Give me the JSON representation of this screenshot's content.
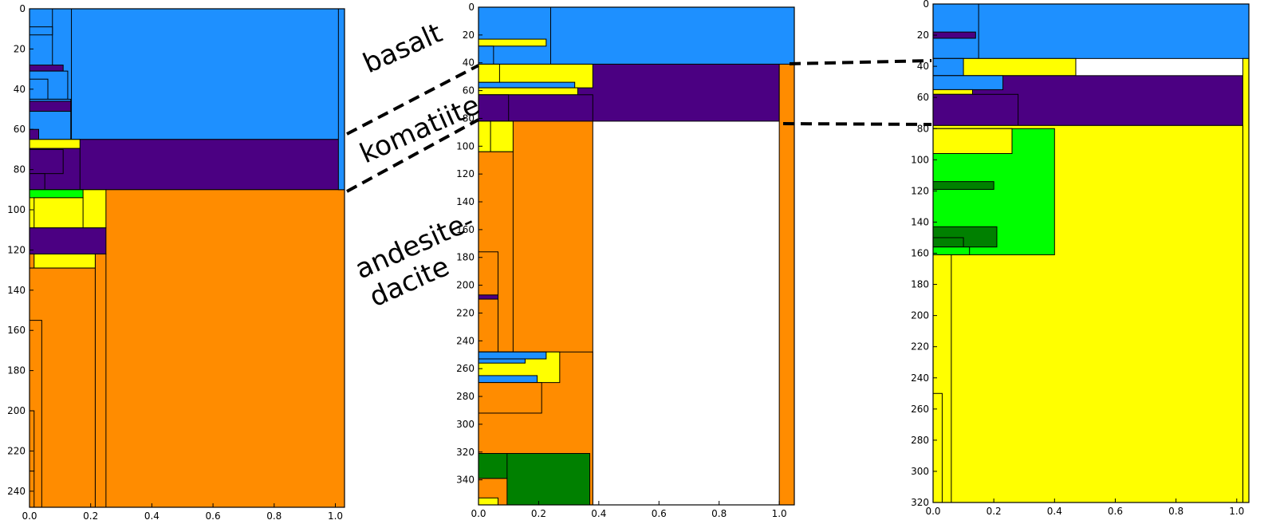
{
  "colors": {
    "basalt": "#1e90ff",
    "komatiite": "#4b0082",
    "andesite": "#ff8c00",
    "yellow": "#ffff00",
    "lime": "#00ff00",
    "green": "#008000",
    "edge": "#000000"
  },
  "annotations": {
    "basalt": "basalt",
    "komatiite": "komatiite",
    "andesite_line1": "andesite-",
    "andesite_line2": "dacite"
  },
  "chart_data": [
    {
      "type": "icicle",
      "xlim": [
        0,
        1.03
      ],
      "ylim": [
        0,
        248
      ],
      "xticks": [
        0.0,
        0.2,
        0.4,
        0.6,
        0.8,
        1.0
      ],
      "xtick_labels": [
        "0.0",
        "0.2",
        "0.4",
        "0.6",
        "0.8",
        "1.0"
      ],
      "yticks": [
        0,
        20,
        40,
        60,
        80,
        100,
        120,
        140,
        160,
        180,
        200,
        220,
        240
      ],
      "ytick_labels": [
        "0",
        "20",
        "40",
        "60",
        "80",
        "100",
        "120",
        "140",
        "160",
        "180",
        "200",
        "220",
        "240"
      ],
      "rects": [
        {
          "x0": 0.0,
          "x1": 1.03,
          "y0": 0,
          "y1": 65,
          "color": "basalt"
        },
        {
          "x0": 0.0,
          "x1": 1.03,
          "y0": 65,
          "y1": 90,
          "color": "komatiite"
        },
        {
          "x0": 0.0,
          "x1": 1.03,
          "y0": 90,
          "y1": 248,
          "color": "andesite"
        },
        {
          "x0": 1.01,
          "x1": 1.03,
          "y0": 0,
          "y1": 90,
          "color": "basalt"
        },
        {
          "x0": 0.0,
          "x1": 0.137,
          "y0": 0,
          "y1": 65,
          "color": "basalt"
        },
        {
          "x0": 0.0,
          "x1": 0.075,
          "y0": 0,
          "y1": 30,
          "color": "basalt"
        },
        {
          "x0": 0.0,
          "x1": 0.075,
          "y0": 9,
          "y1": 13,
          "color": "basalt"
        },
        {
          "x0": 0.0,
          "x1": 0.11,
          "y0": 28,
          "y1": 31,
          "color": "komatiite"
        },
        {
          "x0": 0.0,
          "x1": 0.125,
          "y0": 31,
          "y1": 45,
          "color": "basalt"
        },
        {
          "x0": 0.0,
          "x1": 0.06,
          "y0": 35,
          "y1": 45,
          "color": "basalt"
        },
        {
          "x0": 0.0,
          "x1": 0.135,
          "y0": 45,
          "y1": 51,
          "color": "basalt"
        },
        {
          "x0": 0.0,
          "x1": 0.135,
          "y0": 46,
          "y1": 51,
          "color": "komatiite"
        },
        {
          "x0": 0.0,
          "x1": 0.135,
          "y0": 51,
          "y1": 65,
          "color": "basalt"
        },
        {
          "x0": 0.0,
          "x1": 0.03,
          "y0": 60,
          "y1": 65,
          "color": "komatiite"
        },
        {
          "x0": 0.0,
          "x1": 0.165,
          "y0": 65,
          "y1": 69.5,
          "color": "yellow"
        },
        {
          "x0": 0.0,
          "x1": 0.165,
          "y0": 69.5,
          "y1": 90,
          "color": "komatiite"
        },
        {
          "x0": 0.0,
          "x1": 0.11,
          "y0": 70,
          "y1": 82,
          "color": "komatiite"
        },
        {
          "x0": 0.0,
          "x1": 0.05,
          "y0": 82,
          "y1": 90,
          "color": "komatiite"
        },
        {
          "x0": 0.0,
          "x1": 0.25,
          "y0": 90,
          "y1": 109,
          "color": "yellow"
        },
        {
          "x0": 0.0,
          "x1": 0.175,
          "y0": 90,
          "y1": 94,
          "color": "lime"
        },
        {
          "x0": 0.015,
          "x1": 0.175,
          "y0": 94,
          "y1": 109,
          "color": "yellow"
        },
        {
          "x0": 0.0,
          "x1": 0.25,
          "y0": 109,
          "y1": 122,
          "color": "komatiite"
        },
        {
          "x0": 0.0,
          "x1": 0.215,
          "y0": 122,
          "y1": 129,
          "color": "yellow"
        },
        {
          "x0": 0.0,
          "x1": 0.015,
          "y0": 122,
          "y1": 129,
          "color": "andesite"
        },
        {
          "x0": 0.0,
          "x1": 0.215,
          "y0": 129,
          "y1": 248,
          "color": "andesite"
        },
        {
          "x0": 0.215,
          "x1": 0.25,
          "y0": 122,
          "y1": 248,
          "color": "andesite"
        },
        {
          "x0": 0.0,
          "x1": 0.04,
          "y0": 155,
          "y1": 248,
          "color": "andesite"
        },
        {
          "x0": 0.0,
          "x1": 0.015,
          "y0": 200,
          "y1": 230,
          "color": "andesite"
        },
        {
          "x0": 0.0,
          "x1": 0.015,
          "y0": 230,
          "y1": 248,
          "color": "andesite"
        }
      ]
    },
    {
      "type": "icicle",
      "xlim": [
        0,
        1.05
      ],
      "ylim": [
        0,
        358
      ],
      "xticks": [
        0.0,
        0.2,
        0.4,
        0.6,
        0.8,
        1.0
      ],
      "xtick_labels": [
        "0.0",
        "0.2",
        "0.4",
        "0.6",
        "0.8",
        "1.0"
      ],
      "yticks": [
        0,
        20,
        40,
        60,
        80,
        100,
        120,
        140,
        160,
        180,
        200,
        220,
        240,
        260,
        280,
        300,
        320,
        340
      ],
      "ytick_labels": [
        "0",
        "20",
        "40",
        "60",
        "80",
        "100",
        "120",
        "140",
        "160",
        "180",
        "200",
        "220",
        "240",
        "260",
        "280",
        "300",
        "320",
        "340"
      ],
      "rects": [
        {
          "x0": 0.0,
          "x1": 1.05,
          "y0": 0,
          "y1": 41,
          "color": "basalt"
        },
        {
          "x0": 0.0,
          "x1": 0.24,
          "y0": 0,
          "y1": 41,
          "color": "basalt"
        },
        {
          "x0": 0.0,
          "x1": 0.225,
          "y0": 23,
          "y1": 28,
          "color": "yellow"
        },
        {
          "x0": 0.0,
          "x1": 0.05,
          "y0": 28,
          "y1": 41,
          "color": "basalt"
        },
        {
          "x0": 0.0,
          "x1": 1.0,
          "y0": 41,
          "y1": 82,
          "color": "komatiite"
        },
        {
          "x0": 1.0,
          "x1": 1.05,
          "y0": 41,
          "y1": 358,
          "color": "andesite"
        },
        {
          "x0": 0.0,
          "x1": 0.38,
          "y0": 41,
          "y1": 58,
          "color": "yellow"
        },
        {
          "x0": 0.0,
          "x1": 0.32,
          "y0": 54,
          "y1": 58,
          "color": "basalt"
        },
        {
          "x0": 0.0,
          "x1": 0.33,
          "y0": 58,
          "y1": 63,
          "color": "yellow"
        },
        {
          "x0": 0.0,
          "x1": 0.07,
          "y0": 41,
          "y1": 54,
          "color": "yellow"
        },
        {
          "x0": 0.0,
          "x1": 0.38,
          "y0": 63,
          "y1": 82,
          "color": "komatiite"
        },
        {
          "x0": 0.0,
          "x1": 0.1,
          "y0": 63,
          "y1": 82,
          "color": "komatiite"
        },
        {
          "x0": 0.0,
          "x1": 0.38,
          "y0": 82,
          "y1": 358,
          "color": "andesite"
        },
        {
          "x0": 0.0,
          "x1": 0.115,
          "y0": 82,
          "y1": 104,
          "color": "yellow"
        },
        {
          "x0": 0.0,
          "x1": 0.04,
          "y0": 82,
          "y1": 104,
          "color": "yellow"
        },
        {
          "x0": 0.0,
          "x1": 0.115,
          "y0": 104,
          "y1": 248,
          "color": "andesite"
        },
        {
          "x0": 0.0,
          "x1": 0.065,
          "y0": 176,
          "y1": 248,
          "color": "andesite"
        },
        {
          "x0": 0.0,
          "x1": 0.065,
          "y0": 207,
          "y1": 210,
          "color": "komatiite"
        },
        {
          "x0": 0.0,
          "x1": 0.38,
          "y0": 248,
          "y1": 358,
          "color": "andesite"
        },
        {
          "x0": 0.0,
          "x1": 0.27,
          "y0": 248,
          "y1": 270,
          "color": "yellow"
        },
        {
          "x0": 0.0,
          "x1": 0.225,
          "y0": 248,
          "y1": 253,
          "color": "basalt"
        },
        {
          "x0": 0.0,
          "x1": 0.155,
          "y0": 253,
          "y1": 256,
          "color": "basalt"
        },
        {
          "x0": 0.0,
          "x1": 0.195,
          "y0": 265,
          "y1": 270,
          "color": "basalt"
        },
        {
          "x0": 0.0,
          "x1": 0.21,
          "y0": 270,
          "y1": 292,
          "color": "andesite"
        },
        {
          "x0": 0.0,
          "x1": 0.37,
          "y0": 321,
          "y1": 358,
          "color": "green"
        },
        {
          "x0": 0.0,
          "x1": 0.095,
          "y0": 321,
          "y1": 339,
          "color": "green"
        },
        {
          "x0": 0.0,
          "x1": 0.095,
          "y0": 339,
          "y1": 358,
          "color": "andesite"
        },
        {
          "x0": 0.0,
          "x1": 0.065,
          "y0": 353,
          "y1": 358,
          "color": "yellow"
        }
      ]
    },
    {
      "type": "icicle",
      "xlim": [
        0,
        1.04
      ],
      "ylim": [
        0,
        320
      ],
      "xticks": [
        0.0,
        0.2,
        0.4,
        0.6,
        0.8,
        1.0
      ],
      "xtick_labels": [
        "0.0",
        "0.2",
        "0.4",
        "0.6",
        "0.8",
        "1.0"
      ],
      "yticks": [
        0,
        20,
        40,
        60,
        80,
        100,
        120,
        140,
        160,
        180,
        200,
        220,
        240,
        260,
        280,
        300,
        320
      ],
      "ytick_labels": [
        "0",
        "20",
        "40",
        "60",
        "80",
        "100",
        "120",
        "140",
        "160",
        "180",
        "200",
        "220",
        "240",
        "260",
        "280",
        "300",
        "320"
      ],
      "rects": [
        {
          "x0": 0.0,
          "x1": 1.04,
          "y0": 0,
          "y1": 35,
          "color": "basalt"
        },
        {
          "x0": 0.0,
          "x1": 0.15,
          "y0": 0,
          "y1": 35,
          "color": "basalt"
        },
        {
          "x0": 0.0,
          "x1": 0.14,
          "y0": 18,
          "y1": 22,
          "color": "komatiite"
        },
        {
          "x0": 0.0,
          "x1": 0.47,
          "y0": 35,
          "y1": 46,
          "color": "yellow"
        },
        {
          "x0": 0.0,
          "x1": 0.1,
          "y0": 35,
          "y1": 46,
          "color": "basalt"
        },
        {
          "x0": 0.0,
          "x1": 1.02,
          "y0": 46,
          "y1": 78,
          "color": "komatiite"
        },
        {
          "x0": 1.02,
          "x1": 1.04,
          "y0": 35,
          "y1": 320,
          "color": "yellow"
        },
        {
          "x0": 0.0,
          "x1": 0.23,
          "y0": 46,
          "y1": 55,
          "color": "basalt"
        },
        {
          "x0": 0.0,
          "x1": 0.13,
          "y0": 55,
          "y1": 58,
          "color": "yellow"
        },
        {
          "x0": 0.0,
          "x1": 0.28,
          "y0": 58,
          "y1": 78,
          "color": "komatiite"
        },
        {
          "x0": 0.0,
          "x1": 1.02,
          "y0": 78,
          "y1": 320,
          "color": "yellow"
        },
        {
          "x0": 0.0,
          "x1": 0.4,
          "y0": 80,
          "y1": 161,
          "color": "lime"
        },
        {
          "x0": 0.0,
          "x1": 0.26,
          "y0": 80,
          "y1": 96,
          "color": "yellow"
        },
        {
          "x0": 0.0,
          "x1": 0.2,
          "y0": 114,
          "y1": 119,
          "color": "green"
        },
        {
          "x0": 0.0,
          "x1": 0.21,
          "y0": 143,
          "y1": 156,
          "color": "green"
        },
        {
          "x0": 0.0,
          "x1": 0.1,
          "y0": 150,
          "y1": 156,
          "color": "green"
        },
        {
          "x0": 0.0,
          "x1": 0.12,
          "y0": 156,
          "y1": 161,
          "color": "lime"
        },
        {
          "x0": 0.0,
          "x1": 0.06,
          "y0": 161,
          "y1": 320,
          "color": "yellow"
        },
        {
          "x0": 0.0,
          "x1": 0.03,
          "y0": 250,
          "y1": 320,
          "color": "yellow"
        }
      ]
    }
  ]
}
